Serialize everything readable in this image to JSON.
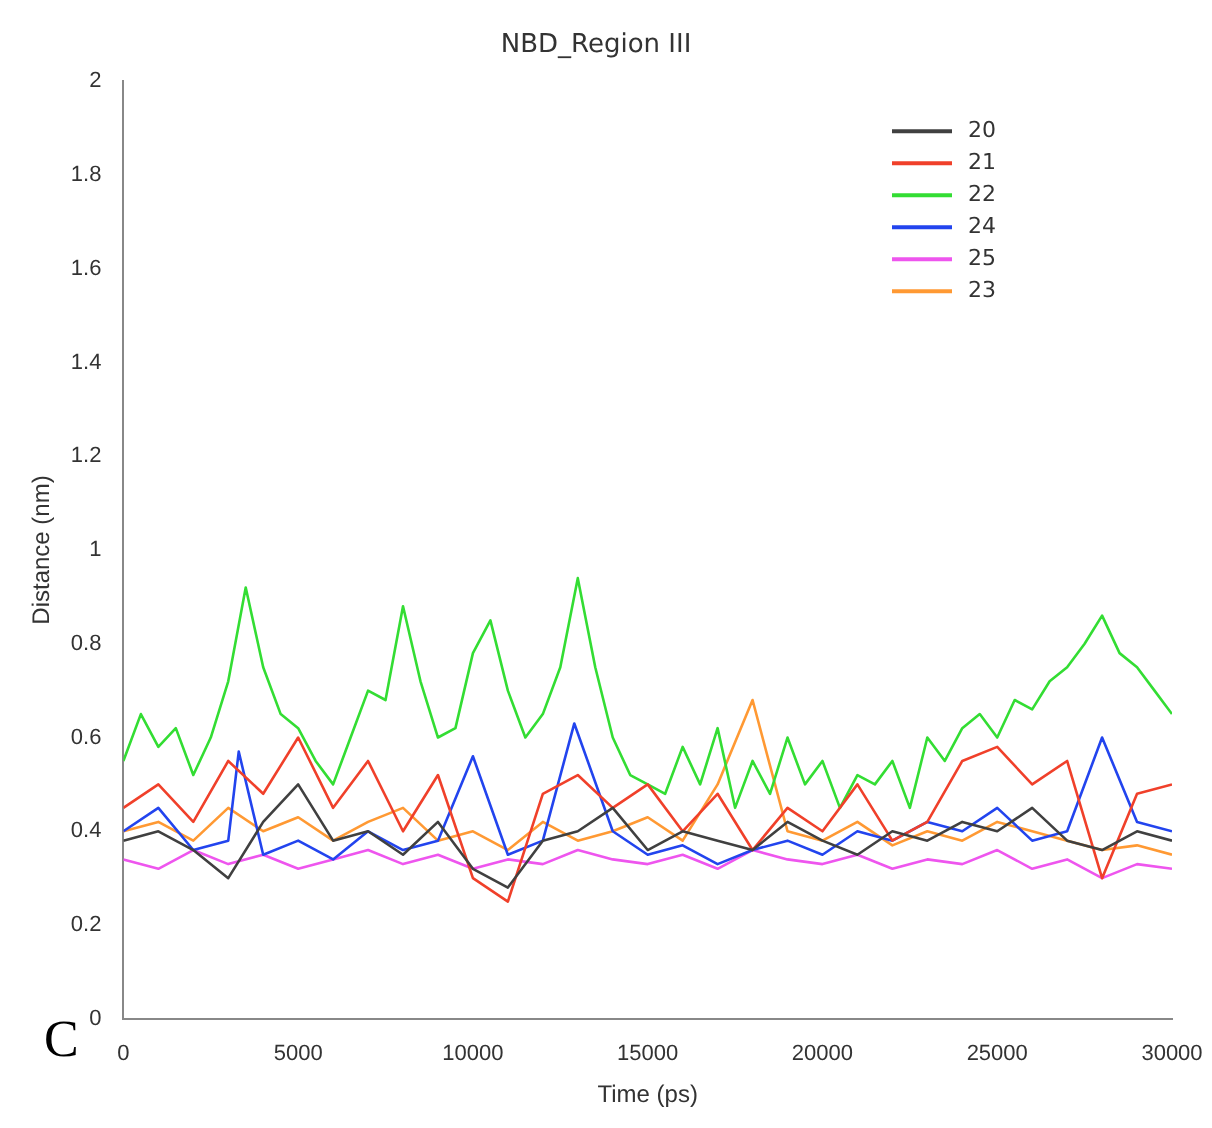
{
  "chart_data": {
    "type": "line",
    "title": "NBD_Region III",
    "xlabel": "Time (ps)",
    "ylabel": "Distance (nm)",
    "annotations": [
      "C"
    ],
    "xlim": [
      0,
      30000
    ],
    "xticks": [
      0,
      5000,
      10000,
      15000,
      20000,
      25000,
      30000
    ],
    "ylim": [
      0,
      2
    ],
    "yticks": [
      0,
      0.2,
      0.4,
      0.6,
      0.8,
      1,
      1.2,
      1.4,
      1.6,
      1.8,
      2
    ],
    "grid": false,
    "legend": "top right",
    "marker": "none",
    "line_style": "solid",
    "series": [
      {
        "name": "20",
        "color": "#404040",
        "x": [
          0,
          1000,
          2000,
          3000,
          4000,
          5000,
          6000,
          7000,
          8000,
          9000,
          10000,
          11000,
          12000,
          13000,
          14000,
          15000,
          16000,
          17000,
          18000,
          19000,
          20000,
          21000,
          22000,
          23000,
          24000,
          25000,
          26000,
          27000,
          28000,
          29000,
          30000
        ],
        "values": [
          0.38,
          0.4,
          0.36,
          0.3,
          0.42,
          0.5,
          0.38,
          0.4,
          0.35,
          0.42,
          0.32,
          0.28,
          0.38,
          0.4,
          0.45,
          0.36,
          0.4,
          0.38,
          0.36,
          0.42,
          0.38,
          0.35,
          0.4,
          0.38,
          0.42,
          0.4,
          0.45,
          0.38,
          0.36,
          0.4,
          0.38
        ]
      },
      {
        "name": "21",
        "color": "#f0402a",
        "x": [
          0,
          1000,
          2000,
          3000,
          4000,
          5000,
          6000,
          7000,
          8000,
          9000,
          10000,
          11000,
          12000,
          13000,
          14000,
          15000,
          16000,
          17000,
          18000,
          19000,
          20000,
          21000,
          22000,
          23000,
          24000,
          25000,
          26000,
          27000,
          28000,
          29000,
          30000
        ],
        "values": [
          0.45,
          0.5,
          0.42,
          0.55,
          0.48,
          0.6,
          0.45,
          0.55,
          0.4,
          0.52,
          0.3,
          0.25,
          0.48,
          0.52,
          0.45,
          0.5,
          0.4,
          0.48,
          0.36,
          0.45,
          0.4,
          0.5,
          0.38,
          0.42,
          0.55,
          0.58,
          0.5,
          0.55,
          0.3,
          0.48,
          0.5
        ]
      },
      {
        "name": "22",
        "color": "#33dd33",
        "x": [
          0,
          500,
          1000,
          1500,
          2000,
          2500,
          3000,
          3500,
          4000,
          4500,
          5000,
          5500,
          6000,
          6500,
          7000,
          7500,
          8000,
          8500,
          9000,
          9500,
          10000,
          10500,
          11000,
          11500,
          12000,
          12500,
          13000,
          13500,
          14000,
          14500,
          15000,
          15500,
          16000,
          16500,
          17000,
          17500,
          18000,
          18500,
          19000,
          19500,
          20000,
          20500,
          21000,
          21500,
          22000,
          22500,
          23000,
          23500,
          24000,
          24500,
          25000,
          25500,
          26000,
          26500,
          27000,
          27500,
          28000,
          28500,
          29000,
          29500,
          30000
        ],
        "values": [
          0.55,
          0.65,
          0.58,
          0.62,
          0.52,
          0.6,
          0.72,
          0.92,
          0.75,
          0.65,
          0.62,
          0.55,
          0.5,
          0.6,
          0.7,
          0.68,
          0.88,
          0.72,
          0.6,
          0.62,
          0.78,
          0.85,
          0.7,
          0.6,
          0.65,
          0.75,
          0.94,
          0.75,
          0.6,
          0.52,
          0.5,
          0.48,
          0.58,
          0.5,
          0.62,
          0.45,
          0.55,
          0.48,
          0.6,
          0.5,
          0.55,
          0.45,
          0.52,
          0.5,
          0.55,
          0.45,
          0.6,
          0.55,
          0.62,
          0.65,
          0.6,
          0.68,
          0.66,
          0.72,
          0.75,
          0.8,
          0.86,
          0.78,
          0.75,
          0.7,
          0.65
        ]
      },
      {
        "name": "24",
        "color": "#2244ee",
        "x": [
          0,
          1000,
          2000,
          3000,
          3300,
          4000,
          5000,
          6000,
          7000,
          8000,
          9000,
          10000,
          11000,
          12000,
          12900,
          14000,
          15000,
          16000,
          17000,
          18000,
          19000,
          20000,
          21000,
          22000,
          23000,
          24000,
          25000,
          26000,
          27000,
          28000,
          29000,
          30000
        ],
        "values": [
          0.4,
          0.45,
          0.36,
          0.38,
          0.57,
          0.35,
          0.38,
          0.34,
          0.4,
          0.36,
          0.38,
          0.56,
          0.35,
          0.38,
          0.63,
          0.4,
          0.35,
          0.37,
          0.33,
          0.36,
          0.38,
          0.35,
          0.4,
          0.38,
          0.42,
          0.4,
          0.45,
          0.38,
          0.4,
          0.6,
          0.42,
          0.4
        ]
      },
      {
        "name": "25",
        "color": "#ee55ee",
        "x": [
          0,
          1000,
          2000,
          3000,
          4000,
          5000,
          6000,
          7000,
          8000,
          9000,
          10000,
          11000,
          12000,
          13000,
          14000,
          15000,
          16000,
          17000,
          18000,
          19000,
          20000,
          21000,
          22000,
          23000,
          24000,
          25000,
          26000,
          27000,
          28000,
          29000,
          30000
        ],
        "values": [
          0.34,
          0.32,
          0.36,
          0.33,
          0.35,
          0.32,
          0.34,
          0.36,
          0.33,
          0.35,
          0.32,
          0.34,
          0.33,
          0.36,
          0.34,
          0.33,
          0.35,
          0.32,
          0.36,
          0.34,
          0.33,
          0.35,
          0.32,
          0.34,
          0.33,
          0.36,
          0.32,
          0.34,
          0.3,
          0.33,
          0.32
        ]
      },
      {
        "name": "23",
        "color": "#ff9933",
        "x": [
          0,
          1000,
          2000,
          3000,
          4000,
          5000,
          6000,
          7000,
          8000,
          9000,
          10000,
          11000,
          12000,
          13000,
          14000,
          15000,
          16000,
          17000,
          18000,
          19000,
          20000,
          21000,
          22000,
          23000,
          24000,
          25000,
          26000,
          27000,
          28000,
          29000,
          30000
        ],
        "values": [
          0.4,
          0.42,
          0.38,
          0.45,
          0.4,
          0.43,
          0.38,
          0.42,
          0.45,
          0.38,
          0.4,
          0.36,
          0.42,
          0.38,
          0.4,
          0.43,
          0.38,
          0.5,
          0.68,
          0.4,
          0.38,
          0.42,
          0.37,
          0.4,
          0.38,
          0.42,
          0.4,
          0.38,
          0.36,
          0.37,
          0.35
        ]
      }
    ]
  }
}
